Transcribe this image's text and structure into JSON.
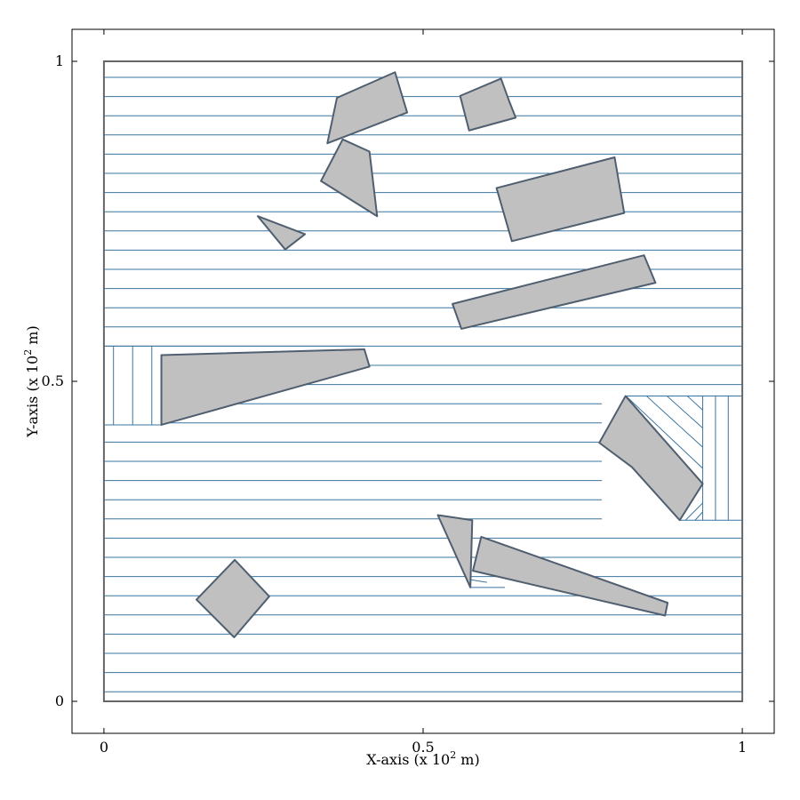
{
  "chart_data": {
    "type": "scatter",
    "title": "",
    "xlabel": "X-axis (x 10",
    "xlabel_sup": "2",
    "xlabel_suffix": " m)",
    "ylabel": "Y-axis (x 10",
    "ylabel_sup": "2",
    "ylabel_suffix": " m)",
    "xlim": [
      -0.05,
      1.05
    ],
    "ylim": [
      -0.05,
      1.05
    ],
    "xticks": [
      {
        "value": 0,
        "label": "0"
      },
      {
        "value": 0.5,
        "label": "0.5"
      },
      {
        "value": 1,
        "label": "1"
      }
    ],
    "yticks": [
      {
        "value": 0,
        "label": "0"
      },
      {
        "value": 0.5,
        "label": "0.5"
      },
      {
        "value": 1,
        "label": "1"
      }
    ],
    "grid": false,
    "colors": {
      "frame": "#000000",
      "domain": "#666666",
      "sweep": "#3a75a0",
      "obstacle_fill": "#c0c0c0",
      "obstacle_stroke": "#505f70"
    },
    "domain_boundary": [
      [
        0,
        0
      ],
      [
        1,
        0
      ],
      [
        1,
        1
      ],
      [
        0,
        1
      ]
    ],
    "sweep_lines": {
      "horizontal": {
        "left_full_x": 0.0,
        "right_full_x": 1.0,
        "y_start": 0.015,
        "y_end": 0.985,
        "spacing": 0.03,
        "cells": [
          {
            "y_min": 0.0,
            "y_max": 0.555,
            "x_min": 0.0,
            "x_max": 1.0,
            "skip": [
              [
                0.0,
                0.09,
                0.432,
                0.555
              ],
              [
                0.78,
                1.0,
                0.28,
                0.48
              ]
            ]
          },
          {
            "y_min": 0.555,
            "y_max": 1.0,
            "x_min": 0.0,
            "x_max": 1.0,
            "skip": []
          }
        ]
      },
      "vertical_left": {
        "x_values": [
          0.015,
          0.045,
          0.075
        ],
        "y_min": 0.432,
        "y_max": 0.555
      },
      "vertical_right": {
        "x_values": [
          0.938,
          0.958,
          0.978
        ],
        "y_min": 0.283,
        "y_max": 0.477
      },
      "diagonal_right": [
        [
          [
            0.818,
            0.477
          ],
          [
            0.938,
            0.364
          ]
        ],
        [
          [
            0.85,
            0.477
          ],
          [
            0.938,
            0.397
          ]
        ],
        [
          [
            0.882,
            0.477
          ],
          [
            0.938,
            0.427
          ]
        ],
        [
          [
            0.914,
            0.477
          ],
          [
            0.938,
            0.455
          ]
        ],
        [
          [
            0.911,
            0.283
          ],
          [
            0.938,
            0.31
          ]
        ],
        [
          [
            0.926,
            0.283
          ],
          [
            0.938,
            0.296
          ]
        ]
      ],
      "diagonal_bottom": [
        [
          [
            0.575,
            0.178
          ],
          [
            0.628,
            0.178
          ]
        ],
        [
          [
            0.575,
            0.19
          ],
          [
            0.6,
            0.186
          ]
        ]
      ]
    },
    "obstacles": [
      {
        "name": "obstacle-top-left-quad",
        "points": [
          [
            0.365,
            0.943
          ],
          [
            0.456,
            0.983
          ],
          [
            0.475,
            0.92
          ],
          [
            0.35,
            0.872
          ]
        ]
      },
      {
        "name": "obstacle-top-right-small",
        "points": [
          [
            0.558,
            0.946
          ],
          [
            0.622,
            0.973
          ],
          [
            0.634,
            0.94
          ],
          [
            0.645,
            0.912
          ],
          [
            0.572,
            0.892
          ]
        ]
      },
      {
        "name": "obstacle-triangle-upper",
        "points": [
          [
            0.374,
            0.878
          ],
          [
            0.416,
            0.859
          ],
          [
            0.428,
            0.758
          ],
          [
            0.34,
            0.813
          ]
        ]
      },
      {
        "name": "obstacle-small-triangle",
        "points": [
          [
            0.241,
            0.758
          ],
          [
            0.315,
            0.73
          ],
          [
            0.284,
            0.706
          ]
        ]
      },
      {
        "name": "obstacle-rectangle-upper-right",
        "points": [
          [
            0.615,
            0.802
          ],
          [
            0.8,
            0.85
          ],
          [
            0.815,
            0.763
          ],
          [
            0.639,
            0.719
          ]
        ]
      },
      {
        "name": "obstacle-long-bar",
        "points": [
          [
            0.546,
            0.621
          ],
          [
            0.846,
            0.697
          ],
          [
            0.864,
            0.654
          ],
          [
            0.56,
            0.582
          ]
        ]
      },
      {
        "name": "obstacle-wedge-left",
        "points": [
          [
            0.09,
            0.541
          ],
          [
            0.408,
            0.55
          ],
          [
            0.416,
            0.523
          ],
          [
            0.09,
            0.432
          ]
        ]
      },
      {
        "name": "obstacle-right-quad",
        "points": [
          [
            0.817,
            0.477
          ],
          [
            0.938,
            0.34
          ],
          [
            0.902,
            0.283
          ],
          [
            0.827,
            0.366
          ],
          [
            0.776,
            0.404
          ]
        ]
      },
      {
        "name": "obstacle-bottom-triangle",
        "points": [
          [
            0.523,
            0.291
          ],
          [
            0.577,
            0.283
          ],
          [
            0.574,
            0.178
          ]
        ]
      },
      {
        "name": "obstacle-bottom-long-wedge",
        "points": [
          [
            0.591,
            0.257
          ],
          [
            0.883,
            0.154
          ],
          [
            0.879,
            0.134
          ],
          [
            0.578,
            0.204
          ]
        ]
      },
      {
        "name": "obstacle-diamond",
        "points": [
          [
            0.205,
            0.221
          ],
          [
            0.259,
            0.164
          ],
          [
            0.204,
            0.1
          ],
          [
            0.145,
            0.159
          ]
        ]
      }
    ]
  }
}
